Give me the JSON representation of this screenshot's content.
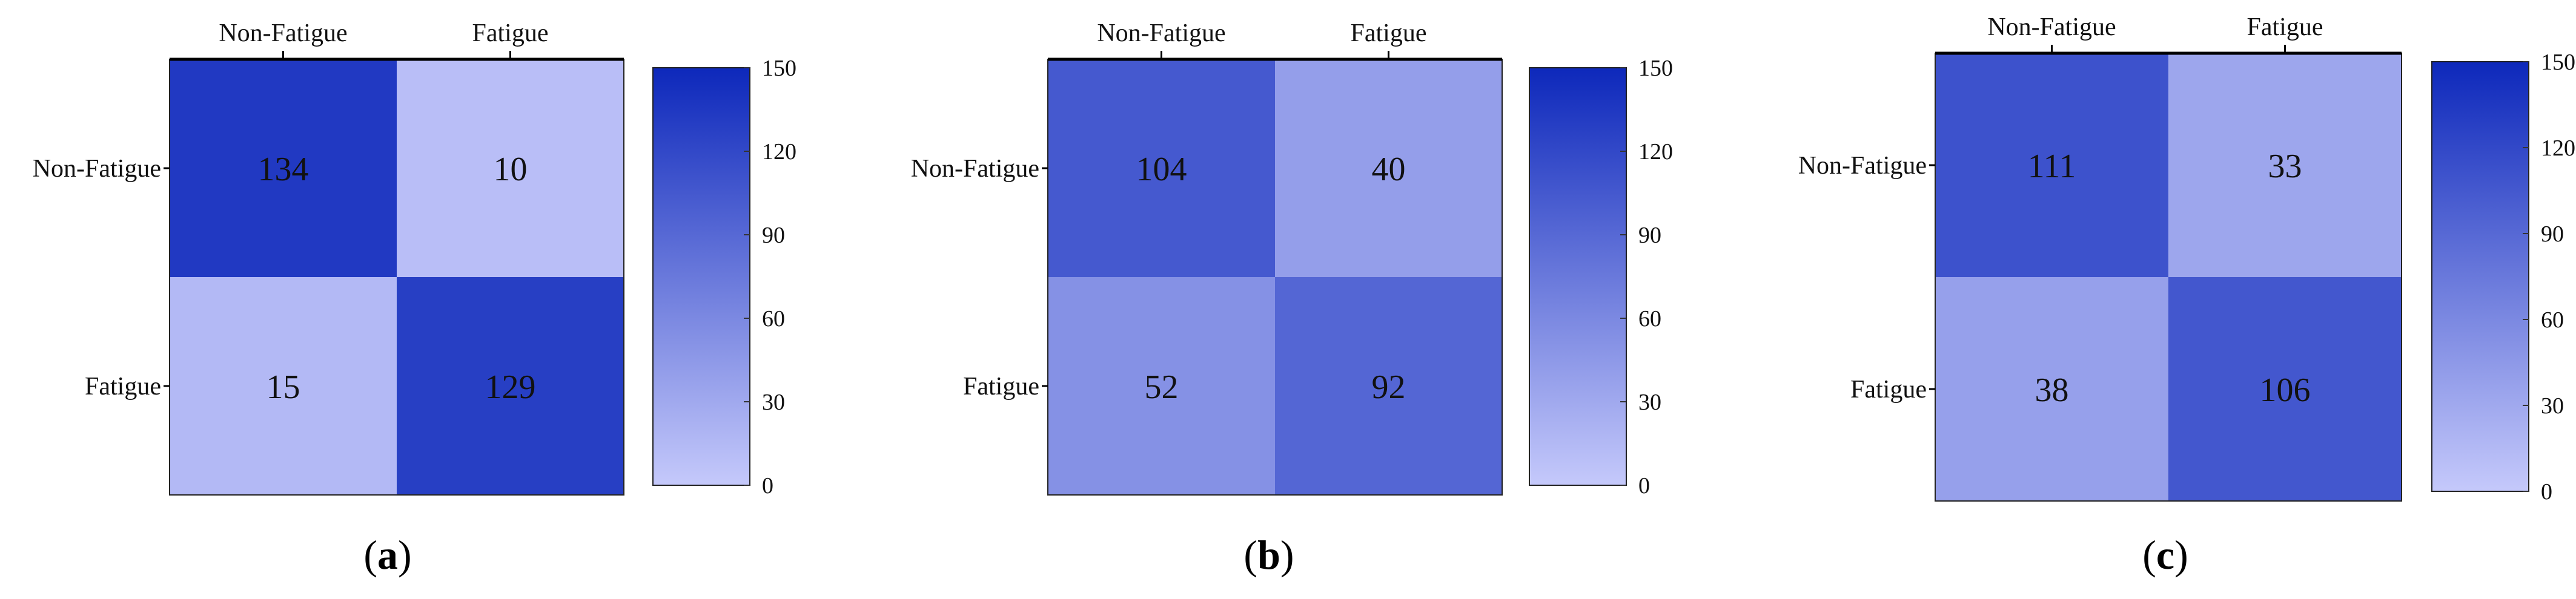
{
  "chart_data": [
    {
      "type": "heatmap",
      "panel_label": "(a)",
      "panel_letter": "a",
      "x_categories": [
        "Non-Fatigue",
        "Fatigue"
      ],
      "y_categories": [
        "Non-Fatigue",
        "Fatigue"
      ],
      "values": [
        [
          134,
          10
        ],
        [
          15,
          129
        ]
      ],
      "colorbar": {
        "min": 0,
        "max": 150,
        "ticks": [
          0,
          30,
          60,
          90,
          120,
          150
        ]
      },
      "colormap": {
        "low": "#c5c9fb",
        "high": "#0d28bb"
      }
    },
    {
      "type": "heatmap",
      "panel_label": "(b)",
      "panel_letter": "b",
      "x_categories": [
        "Non-Fatigue",
        "Fatigue"
      ],
      "y_categories": [
        "Non-Fatigue",
        "Fatigue"
      ],
      "values": [
        [
          104,
          40
        ],
        [
          52,
          92
        ]
      ],
      "colorbar": {
        "min": 0,
        "max": 150,
        "ticks": [
          0,
          30,
          60,
          90,
          120,
          150
        ]
      },
      "colormap": {
        "low": "#c5c9fb",
        "high": "#0d28bb"
      }
    },
    {
      "type": "heatmap",
      "panel_label": "(c)",
      "panel_letter": "c",
      "x_categories": [
        "Non-Fatigue",
        "Fatigue"
      ],
      "y_categories": [
        "Non-Fatigue",
        "Fatigue"
      ],
      "values": [
        [
          111,
          33
        ],
        [
          38,
          106
        ]
      ],
      "colorbar": {
        "min": 0,
        "max": 150,
        "ticks": [
          0,
          30,
          60,
          90,
          120,
          150
        ]
      },
      "colormap": {
        "low": "#c5c9fb",
        "high": "#0d28bb"
      }
    }
  ]
}
